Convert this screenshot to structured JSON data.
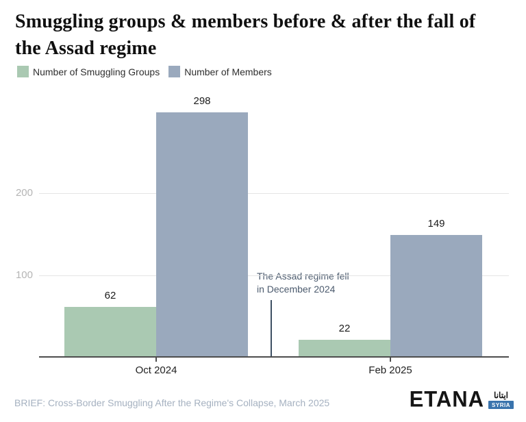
{
  "header": {
    "title_lines": [
      "Smuggling groups & members before & after the fall of",
      "the Assad regime"
    ]
  },
  "legend": {
    "items": [
      {
        "label": "Number of Smuggling Groups",
        "color": "#aac9b2"
      },
      {
        "label": "Number of Members",
        "color": "#9aa9bd"
      }
    ]
  },
  "chart_data": {
    "type": "bar",
    "title": "Smuggling groups & members before & after the fall of the Assad regime",
    "categories": [
      "Oct 2024",
      "Feb 2025"
    ],
    "series": [
      {
        "name": "Number of Smuggling Groups",
        "color": "#aac9b2",
        "values": [
          62,
          22
        ]
      },
      {
        "name": "Number of Members",
        "color": "#9aa9bd",
        "values": [
          298,
          149
        ]
      }
    ],
    "ylim": [
      0,
      310
    ],
    "yticks": [
      100,
      200
    ],
    "grid": true,
    "legend_position": "top-left",
    "value_labels": true,
    "annotation": {
      "lines": [
        "The Assad regime fell",
        "in December 2024"
      ]
    }
  },
  "footer": {
    "source": "BRIEF: Cross-Border Smuggling After the Regime's Collapse, March 2025",
    "logo": {
      "wordmark": "ETANA",
      "arabic": "ايتانا",
      "badge": "SYRIA"
    }
  }
}
